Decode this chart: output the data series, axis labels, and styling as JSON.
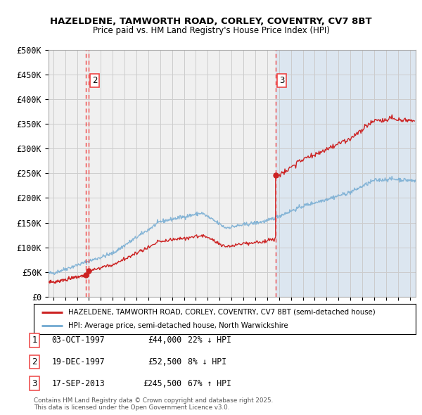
{
  "title1": "HAZELDENE, TAMWORTH ROAD, CORLEY, COVENTRY, CV7 8BT",
  "title2": "Price paid vs. HM Land Registry's House Price Index (HPI)",
  "ylim": [
    0,
    500000
  ],
  "xlim_start": 1994.6,
  "xlim_end": 2025.5,
  "yticks": [
    0,
    50000,
    100000,
    150000,
    200000,
    250000,
    300000,
    350000,
    400000,
    450000,
    500000
  ],
  "ytick_labels": [
    "£0",
    "£50K",
    "£100K",
    "£150K",
    "£200K",
    "£250K",
    "£300K",
    "£350K",
    "£400K",
    "£450K",
    "£500K"
  ],
  "bg_left_color": "#f0f0f0",
  "bg_right_color": "#dce6f0",
  "grid_color": "#cccccc",
  "hpi_line_color": "#7bafd4",
  "price_line_color": "#cc2222",
  "dashed_line_color": "#ee4444",
  "sales": [
    {
      "num": 1,
      "year": 1997.75,
      "price": 44000,
      "label": "1"
    },
    {
      "num": 2,
      "year": 1997.96,
      "price": 52500,
      "label": "2"
    },
    {
      "num": 3,
      "year": 2013.71,
      "price": 245500,
      "label": "3"
    }
  ],
  "legend_items": [
    {
      "label": "HAZELDENE, TAMWORTH ROAD, CORLEY, COVENTRY, CV7 8BT (semi-detached house)",
      "color": "#cc2222"
    },
    {
      "label": "HPI: Average price, semi-detached house, North Warwickshire",
      "color": "#7bafd4"
    }
  ],
  "table_data": [
    {
      "num": "1",
      "date": "03-OCT-1997",
      "price": "£44,000",
      "change": "22% ↓ HPI"
    },
    {
      "num": "2",
      "date": "19-DEC-1997",
      "price": "£52,500",
      "change": "8% ↓ HPI"
    },
    {
      "num": "3",
      "date": "17-SEP-2013",
      "price": "£245,500",
      "change": "67% ↑ HPI"
    }
  ],
  "footnote": "Contains HM Land Registry data © Crown copyright and database right 2025.\nThis data is licensed under the Open Government Licence v3.0.",
  "split_year": 2013.71
}
